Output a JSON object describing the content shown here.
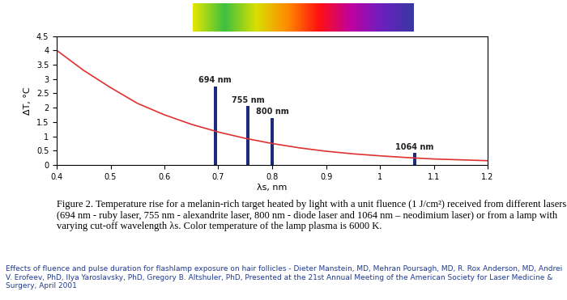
{
  "chart_data": {
    "type": "line",
    "xlabel": "λs, nm",
    "ylabel": "ΔT, °C",
    "xlim": [
      0.4,
      1.2
    ],
    "ylim": [
      0,
      4.5
    ],
    "xticks": [
      0.4,
      0.5,
      0.6,
      0.7,
      0.8,
      0.9,
      1,
      1.1,
      1.2
    ],
    "yticks": [
      0,
      0.5,
      1,
      1.5,
      2,
      2.5,
      3,
      3.5,
      4,
      4.5
    ],
    "grid": false,
    "series": [
      {
        "type": "line",
        "color": "#e03030",
        "x": [
          0.4,
          0.45,
          0.5,
          0.55,
          0.6,
          0.65,
          0.7,
          0.75,
          0.8,
          0.85,
          0.9,
          0.95,
          1.0,
          1.05,
          1.1,
          1.15,
          1.2
        ],
        "values": [
          4.0,
          3.3,
          2.7,
          2.15,
          1.75,
          1.42,
          1.15,
          0.93,
          0.75,
          0.6,
          0.48,
          0.39,
          0.32,
          0.26,
          0.21,
          0.18,
          0.15
        ]
      },
      {
        "type": "bar",
        "color": "#1c2a80",
        "x": [
          0.694,
          0.755,
          0.8,
          1.064
        ],
        "values": [
          2.75,
          2.05,
          1.65,
          0.42
        ],
        "labels": [
          "694 nm",
          "755 nm",
          "800 nm",
          "1064 nm"
        ]
      }
    ],
    "caption": "Figure 2. Temperature rise for a melanin-rich target heated by light with a unit fluence (1 J/cm²) received from different lasers (694 nm - ruby laser, 755 nm - alexandrite laser, 800 nm - diode laser and 1064 nm – neodimium laser) or from a lamp with varying cut-off wavelength λs. Color temperature of the lamp plasma is 6000 K.",
    "source": "Effects of fluence and pulse duration for flashlamp exposure on hair follicles - Dieter Manstein, MD, Mehran Poursagh, MD, R. Rox Anderson, MD, Andrei V. Erofeev, PhD, Ilya Yaroslavsky, PhD, Gregory B. Altshuler, PhD, Presented at the 21st Annual Meeting of the American Society for Laser Medicine & Surgery, April 2001"
  }
}
